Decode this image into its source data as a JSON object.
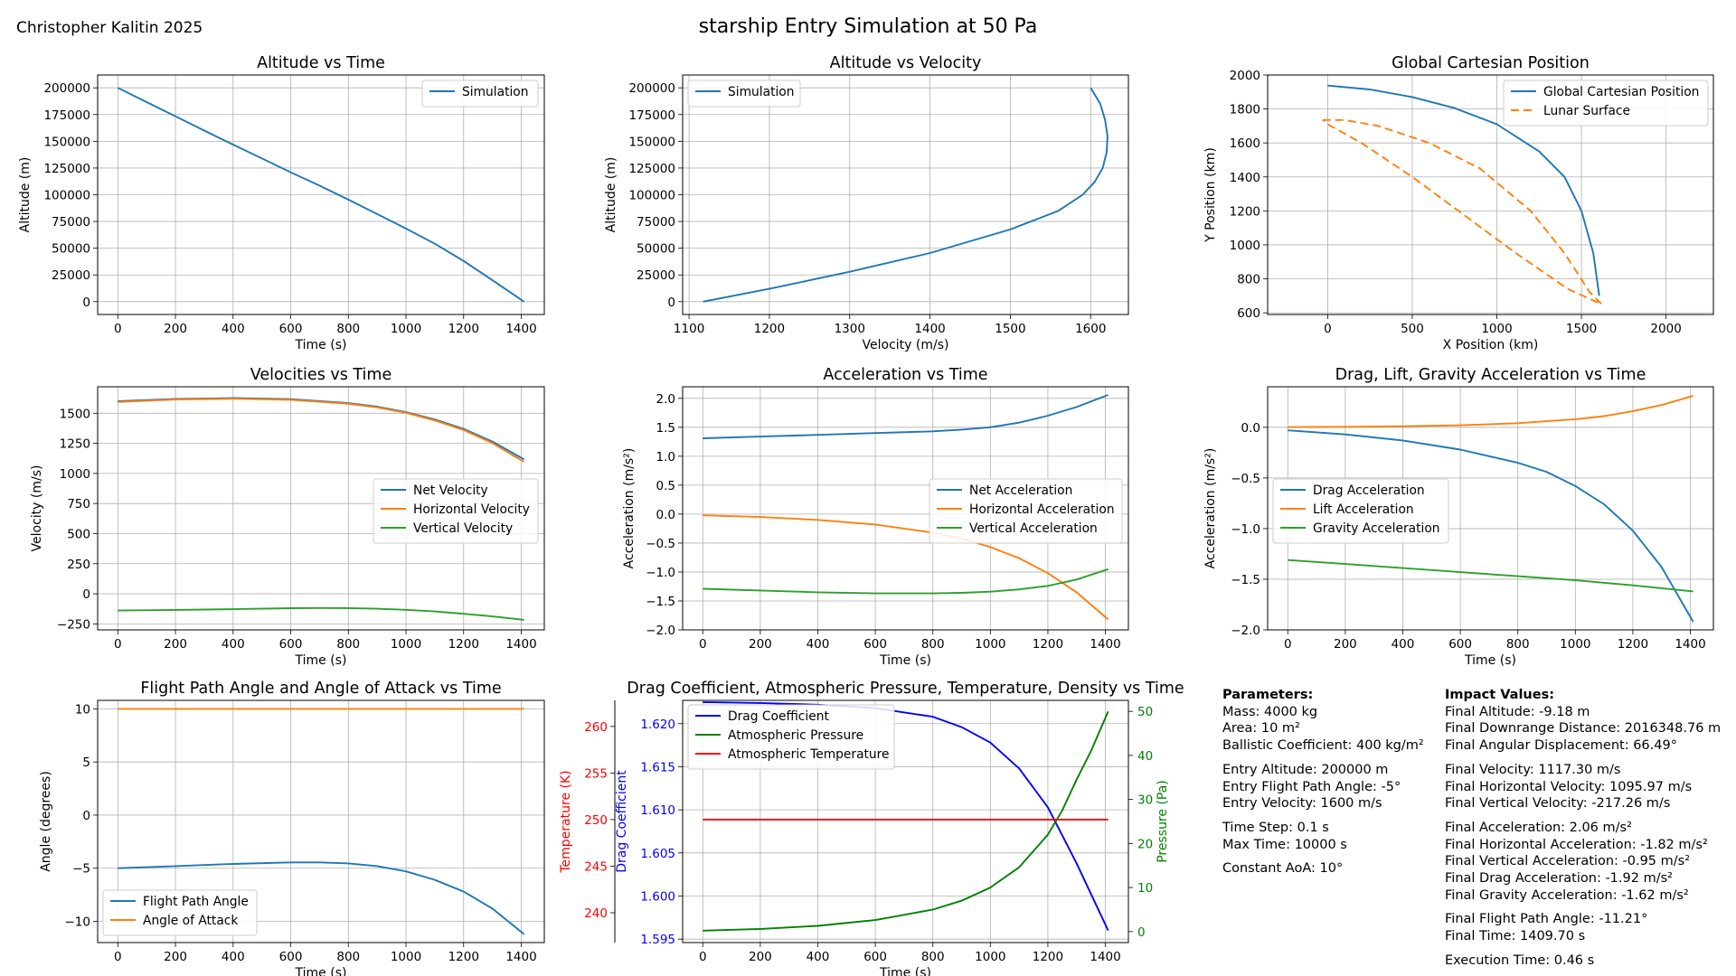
{
  "author": "Christopher Kalitin 2025",
  "main_title": "starship Entry Simulation at 50 Pa",
  "chart_data": [
    {
      "id": "alt_time",
      "type": "line",
      "title": "Altitude vs Time",
      "xlabel": "Time (s)",
      "ylabel": "Altitude (m)",
      "xlim": [
        -70,
        1480
      ],
      "ylim": [
        -12000,
        212000
      ],
      "xticks": [
        0,
        200,
        400,
        600,
        800,
        1000,
        1200,
        1400
      ],
      "yticks": [
        0,
        25000,
        50000,
        75000,
        100000,
        125000,
        150000,
        175000,
        200000
      ],
      "grid": true,
      "legend": "top-right",
      "series": [
        {
          "name": "Simulation",
          "color": "#1f77b4",
          "dash": "",
          "x": [
            0,
            100,
            200,
            300,
            400,
            500,
            600,
            700,
            800,
            900,
            1000,
            1100,
            1200,
            1300,
            1409.7
          ],
          "y": [
            200000,
            186600,
            173400,
            160000,
            146900,
            134000,
            121000,
            108500,
            95400,
            82000,
            68400,
            54200,
            38000,
            20000,
            0
          ]
        }
      ]
    },
    {
      "id": "alt_vel",
      "type": "line",
      "title": "Altitude vs Velocity",
      "xlabel": "Velocity (m/s)",
      "ylabel": "Altitude (m)",
      "xlim": [
        1092,
        1647
      ],
      "ylim": [
        -12000,
        212000
      ],
      "xticks": [
        1100,
        1200,
        1300,
        1400,
        1500,
        1600
      ],
      "yticks": [
        0,
        25000,
        50000,
        75000,
        100000,
        125000,
        150000,
        175000,
        200000
      ],
      "grid": true,
      "legend": "top-left",
      "series": [
        {
          "name": "Simulation",
          "color": "#1f77b4",
          "dash": "",
          "x": [
            1117.3,
            1200,
            1300,
            1400,
            1500,
            1560,
            1590,
            1605,
            1615,
            1620,
            1621,
            1618,
            1612,
            1600
          ],
          "y": [
            0,
            12000,
            28000,
            45500,
            67500,
            85000,
            100000,
            112000,
            125000,
            140000,
            155000,
            170000,
            185000,
            200000
          ]
        }
      ]
    },
    {
      "id": "cart_pos",
      "type": "line",
      "title": "Global Cartesian Position",
      "xlabel": "X Position (km)",
      "ylabel": "Y Position (km)",
      "xlim": [
        -355,
        2280
      ],
      "ylim": [
        590,
        2000
      ],
      "xticks": [
        0,
        500,
        1000,
        1500,
        2000
      ],
      "yticks": [
        600,
        800,
        1000,
        1200,
        1400,
        1600,
        1800,
        2000
      ],
      "grid": true,
      "legend": "top-right",
      "series": [
        {
          "name": "Global Cartesian Position",
          "color": "#1f77b4",
          "dash": "",
          "x": [
            0,
            250,
            500,
            750,
            1000,
            1250,
            1400,
            1500,
            1570,
            1605
          ],
          "y": [
            1938,
            1915,
            1870,
            1805,
            1710,
            1550,
            1400,
            1200,
            950,
            700
          ]
        },
        {
          "name": "Lunar Surface",
          "color": "#ff7f0e",
          "dash": "9,5",
          "x": [
            -30,
            100,
            300,
            600,
            900,
            1200,
            1400,
            1550,
            1620,
            1420,
            1100,
            800,
            500,
            200,
            0,
            -30
          ],
          "y": [
            1735,
            1735,
            1700,
            1600,
            1450,
            1200,
            950,
            720,
            650,
            740,
            960,
            1180,
            1400,
            1600,
            1710,
            1735
          ]
        }
      ]
    },
    {
      "id": "vel_time",
      "type": "line",
      "title": "Velocities vs Time",
      "xlabel": "Time (s)",
      "ylabel": "Velocity (m/s)",
      "xlim": [
        -70,
        1480
      ],
      "ylim": [
        -300,
        1720
      ],
      "xticks": [
        0,
        200,
        400,
        600,
        800,
        1000,
        1200,
        1400
      ],
      "yticks": [
        -250,
        0,
        250,
        500,
        750,
        1000,
        1250,
        1500
      ],
      "grid": true,
      "legend": "center-right",
      "series": [
        {
          "name": "Net Velocity",
          "color": "#1f77b4",
          "dash": "",
          "x": [
            0,
            200,
            400,
            600,
            800,
            900,
            1000,
            1100,
            1200,
            1300,
            1409.7
          ],
          "y": [
            1600,
            1619,
            1626,
            1617,
            1584,
            1555,
            1510,
            1448,
            1370,
            1265,
            1117
          ]
        },
        {
          "name": "Horizontal Velocity",
          "color": "#ff7f0e",
          "dash": "",
          "x": [
            0,
            200,
            400,
            600,
            800,
            900,
            1000,
            1100,
            1200,
            1300,
            1409.7
          ],
          "y": [
            1594,
            1614,
            1621,
            1612,
            1579,
            1549,
            1504,
            1441,
            1360,
            1252,
            1096
          ]
        },
        {
          "name": "Vertical Velocity",
          "color": "#2ca02c",
          "dash": "",
          "x": [
            0,
            200,
            400,
            600,
            700,
            800,
            900,
            1000,
            1100,
            1200,
            1300,
            1409.7
          ],
          "y": [
            -139,
            -134,
            -128,
            -120,
            -118,
            -119,
            -124,
            -133,
            -147,
            -166,
            -188,
            -217
          ]
        }
      ]
    },
    {
      "id": "acc_time",
      "type": "line",
      "title": "Acceleration vs Time",
      "xlabel": "Time (s)",
      "ylabel": "Acceleration (m/s²)",
      "xlim": [
        -70,
        1480
      ],
      "ylim": [
        -2.0,
        2.2
      ],
      "xticks": [
        0,
        200,
        400,
        600,
        800,
        1000,
        1200,
        1400
      ],
      "yticks": [
        -2.0,
        -1.5,
        -1.0,
        -0.5,
        0.0,
        0.5,
        1.0,
        1.5,
        2.0
      ],
      "grid": true,
      "legend": "center-right",
      "series": [
        {
          "name": "Net Acceleration",
          "color": "#1f77b4",
          "dash": "",
          "x": [
            0,
            200,
            400,
            600,
            800,
            900,
            1000,
            1100,
            1200,
            1300,
            1409.7
          ],
          "y": [
            1.31,
            1.34,
            1.37,
            1.4,
            1.43,
            1.46,
            1.5,
            1.58,
            1.7,
            1.85,
            2.06
          ]
        },
        {
          "name": "Horizontal Acceleration",
          "color": "#ff7f0e",
          "dash": "",
          "x": [
            0,
            200,
            400,
            600,
            800,
            900,
            1000,
            1100,
            1200,
            1300,
            1409.7
          ],
          "y": [
            -0.02,
            -0.05,
            -0.1,
            -0.18,
            -0.32,
            -0.42,
            -0.57,
            -0.76,
            -1.02,
            -1.35,
            -1.82
          ]
        },
        {
          "name": "Vertical Acceleration",
          "color": "#2ca02c",
          "dash": "",
          "x": [
            0,
            200,
            400,
            600,
            800,
            900,
            1000,
            1100,
            1200,
            1300,
            1409.7
          ],
          "y": [
            -1.29,
            -1.32,
            -1.35,
            -1.37,
            -1.37,
            -1.36,
            -1.34,
            -1.3,
            -1.24,
            -1.13,
            -0.95
          ]
        }
      ]
    },
    {
      "id": "dlg_time",
      "type": "line",
      "title": "Drag, Lift, Gravity Acceleration vs Time",
      "xlabel": "Time (s)",
      "ylabel": "Acceleration (m/s²)",
      "xlim": [
        -70,
        1480
      ],
      "ylim": [
        -2.0,
        0.4
      ],
      "xticks": [
        0,
        200,
        400,
        600,
        800,
        1000,
        1200,
        1400
      ],
      "yticks": [
        -2.0,
        -1.5,
        -1.0,
        -0.5,
        0.0
      ],
      "grid": true,
      "legend": "center-left",
      "series": [
        {
          "name": "Drag Acceleration",
          "color": "#1f77b4",
          "dash": "",
          "x": [
            0,
            200,
            400,
            600,
            800,
            900,
            1000,
            1100,
            1200,
            1300,
            1409.7
          ],
          "y": [
            -0.03,
            -0.07,
            -0.13,
            -0.22,
            -0.35,
            -0.44,
            -0.58,
            -0.76,
            -1.02,
            -1.38,
            -1.92
          ]
        },
        {
          "name": "Lift Acceleration",
          "color": "#ff7f0e",
          "dash": "",
          "x": [
            0,
            200,
            400,
            600,
            800,
            900,
            1000,
            1100,
            1200,
            1300,
            1409.7
          ],
          "y": [
            0.002,
            0.005,
            0.01,
            0.02,
            0.04,
            0.06,
            0.08,
            0.11,
            0.16,
            0.22,
            0.31
          ]
        },
        {
          "name": "Gravity Acceleration",
          "color": "#2ca02c",
          "dash": "",
          "x": [
            0,
            200,
            400,
            600,
            800,
            1000,
            1200,
            1409.7
          ],
          "y": [
            -1.31,
            -1.35,
            -1.39,
            -1.43,
            -1.47,
            -1.51,
            -1.56,
            -1.62
          ]
        }
      ]
    },
    {
      "id": "fpa_time",
      "type": "line",
      "title": "Flight Path Angle and Angle of Attack vs Time",
      "xlabel": "Time (s)",
      "ylabel": "Angle (degrees)",
      "xlim": [
        -70,
        1480
      ],
      "ylim": [
        -12.0,
        10.8
      ],
      "xticks": [
        0,
        200,
        400,
        600,
        800,
        1000,
        1200,
        1400
      ],
      "yticks": [
        -10,
        -5,
        0,
        5,
        10
      ],
      "grid": true,
      "legend": "bottom-left",
      "series": [
        {
          "name": "Flight Path Angle",
          "color": "#1f77b4",
          "dash": "",
          "x": [
            0,
            200,
            400,
            600,
            700,
            800,
            900,
            1000,
            1100,
            1200,
            1300,
            1409.7
          ],
          "y": [
            -5.0,
            -4.8,
            -4.6,
            -4.45,
            -4.45,
            -4.55,
            -4.8,
            -5.3,
            -6.1,
            -7.2,
            -8.8,
            -11.21
          ]
        },
        {
          "name": "Angle of Attack",
          "color": "#ff7f0e",
          "dash": "",
          "x": [
            0,
            1409.7
          ],
          "y": [
            10,
            10
          ]
        }
      ]
    },
    {
      "id": "atm_time",
      "type": "line",
      "title": "Drag Coefficient, Atmospheric Pressure, Temperature, Density vs Time",
      "xlabel": "Time (s)",
      "ylabel_drag": "Drag Coefficient",
      "ylabel_temp": "Temperature (K)",
      "ylabel_pres": "Pressure (Pa)",
      "xlim": [
        -70,
        1480
      ],
      "xticks": [
        0,
        200,
        400,
        600,
        800,
        1000,
        1200,
        1400
      ],
      "cd_lim": [
        1.5946,
        1.6227
      ],
      "cd_ticks": [
        1.595,
        1.6,
        1.605,
        1.61,
        1.615,
        1.62
      ],
      "temp_lim": [
        236.8,
        262.8
      ],
      "temp_ticks": [
        240,
        245,
        250,
        255,
        260
      ],
      "pres_lim": [
        -2.5,
        52.5
      ],
      "pres_ticks": [
        0,
        10,
        20,
        30,
        40,
        50
      ],
      "grid": true,
      "legend": "top-left",
      "series": [
        {
          "name": "Drag Coefficient",
          "color": "#0000ff",
          "dash": "",
          "axis": "cd",
          "x": [
            0,
            200,
            400,
            600,
            800,
            900,
            1000,
            1100,
            1200,
            1300,
            1409.7
          ],
          "y": [
            1.6225,
            1.6224,
            1.6222,
            1.6218,
            1.6208,
            1.6196,
            1.6178,
            1.6148,
            1.6103,
            1.6038,
            1.596
          ]
        },
        {
          "name": "Atmospheric Pressure",
          "color": "#008000",
          "dash": "",
          "axis": "pres",
          "x": [
            0,
            200,
            400,
            600,
            800,
            900,
            1000,
            1100,
            1200,
            1250,
            1300,
            1350,
            1409.7
          ],
          "y": [
            0.2,
            0.6,
            1.3,
            2.6,
            5.0,
            7.0,
            10.0,
            14.6,
            22.0,
            27.5,
            34.5,
            41.0,
            50.0
          ]
        },
        {
          "name": "Atmospheric Temperature",
          "color": "#ff0000",
          "dash": "",
          "axis": "temp",
          "x": [
            0,
            1409.7
          ],
          "y": [
            250.0,
            250.0
          ]
        }
      ]
    }
  ],
  "params": {
    "col1": [
      {
        "type": "hdr",
        "text": "Parameters:"
      },
      {
        "type": "line",
        "text": "Mass: 4000 kg"
      },
      {
        "type": "line",
        "text": "Area: 10 m²"
      },
      {
        "type": "line",
        "text": "Ballistic Coefficient: 400 kg/m²"
      },
      {
        "type": "gap"
      },
      {
        "type": "line",
        "text": "Entry Altitude: 200000 m"
      },
      {
        "type": "line",
        "text": "Entry Flight Path Angle: -5°"
      },
      {
        "type": "line",
        "text": "Entry Velocity: 1600 m/s"
      },
      {
        "type": "gap"
      },
      {
        "type": "line",
        "text": "Time Step: 0.1 s"
      },
      {
        "type": "line",
        "text": "Max Time: 10000 s"
      },
      {
        "type": "gap"
      },
      {
        "type": "line",
        "text": "Constant AoA: 10°"
      }
    ],
    "col2": [
      {
        "type": "hdr",
        "text": "Impact Values:"
      },
      {
        "type": "line",
        "text": "Final Altitude: -9.18 m"
      },
      {
        "type": "line",
        "text": "Final Downrange Distance: 2016348.76 m"
      },
      {
        "type": "line",
        "text": "Final Angular Displacement: 66.49°"
      },
      {
        "type": "gap"
      },
      {
        "type": "line",
        "text": "Final Velocity: 1117.30 m/s"
      },
      {
        "type": "line",
        "text": "Final Horizontal Velocity: 1095.97 m/s"
      },
      {
        "type": "line",
        "text": "Final Vertical Velocity: -217.26 m/s"
      },
      {
        "type": "gap"
      },
      {
        "type": "line",
        "text": "Final Acceleration: 2.06 m/s²"
      },
      {
        "type": "line",
        "text": "Final Horizontal Acceleration: -1.82 m/s²"
      },
      {
        "type": "line",
        "text": "Final Vertical Acceleration: -0.95 m/s²"
      },
      {
        "type": "line",
        "text": "Final Drag Acceleration: -1.92 m/s²"
      },
      {
        "type": "line",
        "text": "Final Gravity Acceleration: -1.62 m/s²"
      },
      {
        "type": "gap"
      },
      {
        "type": "line",
        "text": "Final Flight Path Angle: -11.21°"
      },
      {
        "type": "line",
        "text": "Final Time: 1409.70 s"
      },
      {
        "type": "gap"
      },
      {
        "type": "line",
        "text": "Execution Time: 0.46 s"
      }
    ]
  }
}
